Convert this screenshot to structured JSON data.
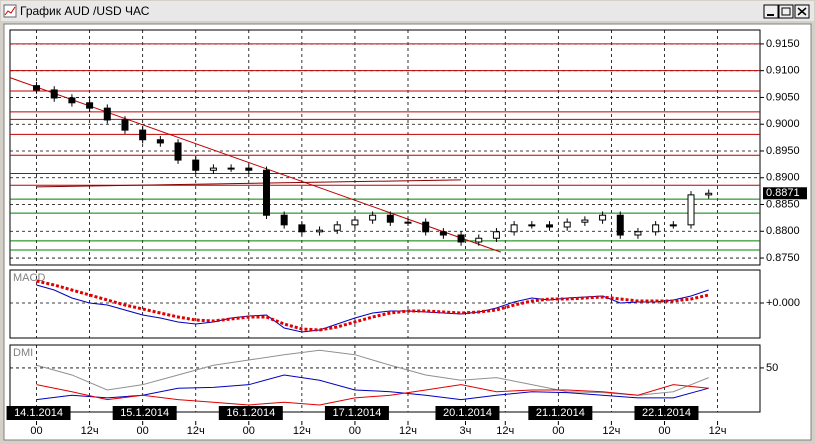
{
  "window": {
    "title": "График AUD /USD  ЧАС"
  },
  "chart_data": [
    {
      "type": "candlestick",
      "xlim": [
        -6,
        163.6
      ],
      "ylim": [
        0.8737,
        0.9176
      ],
      "yticks": [
        {
          "value": 0.915,
          "label": "0.9150"
        },
        {
          "value": 0.91,
          "label": "0.9100"
        },
        {
          "value": 0.905,
          "label": "0.9050"
        },
        {
          "value": 0.9,
          "label": "0.9000"
        },
        {
          "value": 0.895,
          "label": "0.8950"
        },
        {
          "value": 0.89,
          "label": "0.8900"
        },
        {
          "value": 0.885,
          "label": "0.8850"
        },
        {
          "value": 0.88,
          "label": "0.8800"
        },
        {
          "value": 0.875,
          "label": "0.8750"
        }
      ],
      "last_price": 0.8871,
      "x": [
        0,
        4,
        8,
        12,
        16,
        20,
        24,
        28,
        32,
        36,
        40,
        44,
        48,
        52,
        56,
        60,
        64,
        68,
        72,
        76,
        80,
        84,
        88,
        92,
        96,
        100,
        104,
        108,
        112,
        116,
        120,
        124,
        128,
        132,
        136,
        140,
        144,
        148,
        152
      ],
      "open": [
        0.9072,
        0.9064,
        0.9049,
        0.904,
        0.903,
        0.9008,
        0.8989,
        0.8971,
        0.8965,
        0.8933,
        0.8914,
        0.8918,
        0.8918,
        0.8914,
        0.883,
        0.8812,
        0.8799,
        0.8802,
        0.8812,
        0.8821,
        0.883,
        0.8817,
        0.8817,
        0.8799,
        0.8793,
        0.878,
        0.8787,
        0.8799,
        0.8812,
        0.8812,
        0.8808,
        0.8817,
        0.8821,
        0.883,
        0.8793,
        0.8799,
        0.8812,
        0.8812,
        0.8868
      ],
      "high": [
        0.9079,
        0.9071,
        0.9056,
        0.9047,
        0.9037,
        0.9015,
        0.8996,
        0.8978,
        0.8972,
        0.894,
        0.8925,
        0.8925,
        0.8925,
        0.8921,
        0.8837,
        0.8819,
        0.8809,
        0.8819,
        0.8828,
        0.8837,
        0.8837,
        0.8824,
        0.8824,
        0.8806,
        0.88,
        0.8794,
        0.8806,
        0.8819,
        0.8819,
        0.8819,
        0.8824,
        0.8828,
        0.8837,
        0.8837,
        0.8806,
        0.8819,
        0.8819,
        0.8875,
        0.8878
      ],
      "low": [
        0.9057,
        0.9042,
        0.9033,
        0.9023,
        0.9001,
        0.8982,
        0.8964,
        0.8958,
        0.8926,
        0.8907,
        0.8907,
        0.8911,
        0.8907,
        0.8823,
        0.8805,
        0.8792,
        0.8792,
        0.8795,
        0.8805,
        0.8814,
        0.881,
        0.881,
        0.8792,
        0.8786,
        0.8773,
        0.8773,
        0.878,
        0.8792,
        0.8805,
        0.8801,
        0.8801,
        0.881,
        0.8814,
        0.8786,
        0.8786,
        0.8792,
        0.8805,
        0.8805,
        0.8861
      ],
      "close": [
        0.9064,
        0.9049,
        0.904,
        0.903,
        0.9008,
        0.8989,
        0.8971,
        0.8965,
        0.8933,
        0.8914,
        0.8918,
        0.8918,
        0.8914,
        0.883,
        0.8812,
        0.8799,
        0.8802,
        0.8812,
        0.8821,
        0.883,
        0.8817,
        0.8817,
        0.8799,
        0.8793,
        0.878,
        0.8787,
        0.8799,
        0.8812,
        0.8812,
        0.8808,
        0.8817,
        0.8821,
        0.883,
        0.8793,
        0.8799,
        0.8812,
        0.8812,
        0.8868,
        0.8871
      ],
      "levels": [
        {
          "value": 0.915,
          "color": "#c00000"
        },
        {
          "value": 0.91,
          "color": "#c00000"
        },
        {
          "value": 0.9062,
          "color": "#c00000"
        },
        {
          "value": 0.9023,
          "color": "#c00000"
        },
        {
          "value": 0.9009,
          "color": "#c00000"
        },
        {
          "value": 0.8981,
          "color": "#c00000"
        },
        {
          "value": 0.8942,
          "color": "#c00000"
        },
        {
          "value": 0.8908,
          "color": "#c00000"
        },
        {
          "value": 0.8886,
          "color": "#c00000"
        },
        {
          "value": 0.886,
          "color": "#008000"
        },
        {
          "value": 0.8834,
          "color": "#008000"
        },
        {
          "value": 0.8782,
          "color": "#008000"
        },
        {
          "value": 0.8765,
          "color": "#008000"
        }
      ],
      "lines": [
        {
          "color": "#c00000",
          "x": [
            -6,
            105
          ],
          "y": [
            0.9087,
            0.8761
          ]
        },
        {
          "color": "#8b0000",
          "x": [
            0,
            96
          ],
          "y": [
            0.8883,
            0.8896
          ]
        }
      ]
    },
    {
      "type": "line",
      "title": "MACD",
      "xlim": [
        -6,
        163.6
      ],
      "ylim": [
        -0.0035,
        0.0033
      ],
      "yticks": [
        {
          "value": 0,
          "label": "+0.000"
        }
      ],
      "x": [
        0,
        4,
        8,
        12,
        16,
        20,
        24,
        28,
        32,
        36,
        40,
        44,
        48,
        52,
        56,
        60,
        64,
        68,
        72,
        76,
        80,
        84,
        88,
        92,
        96,
        100,
        104,
        108,
        112,
        116,
        120,
        124,
        128,
        132,
        136,
        140,
        144,
        148,
        152
      ],
      "series": [
        {
          "color": "#0000c0",
          "dash": false,
          "values": [
            0.0018,
            0.0013,
            0.0005,
            0,
            -0.0002,
            -0.0007,
            -0.0012,
            -0.0015,
            -0.0019,
            -0.0021,
            -0.0019,
            -0.0015,
            -0.0013,
            -0.0012,
            -0.0025,
            -0.0029,
            -0.0027,
            -0.0021,
            -0.0015,
            -0.001,
            -0.0008,
            -0.0008,
            -0.0009,
            -0.001,
            -0.0011,
            -0.0009,
            -0.0005,
            0.0001,
            0.0005,
            0.0003,
            0.0005,
            0.0006,
            0.0007,
            0,
            0.0001,
            0.0001,
            0.0003,
            0.0007,
            0.0013
          ]
        },
        {
          "color": "#e00000",
          "dash": true,
          "values": [
            0.0022,
            0.0018,
            0.0013,
            0.0008,
            0.0003,
            -0.0002,
            -0.0006,
            -0.001,
            -0.0014,
            -0.0017,
            -0.0018,
            -0.0016,
            -0.0014,
            -0.0014,
            -0.0021,
            -0.0026,
            -0.0027,
            -0.0024,
            -0.0019,
            -0.0014,
            -0.001,
            -0.0008,
            -0.0008,
            -0.0009,
            -0.001,
            -0.0009,
            -0.0007,
            -0.0002,
            0.0002,
            0.0004,
            0.0004,
            0.0005,
            0.0006,
            0.0004,
            0.0002,
            0.0002,
            0.0002,
            0.0004,
            0.0008
          ]
        }
      ]
    },
    {
      "type": "line",
      "title": "DMI",
      "xlim": [
        -6,
        163.6
      ],
      "ylim": [
        0,
        76
      ],
      "yticks": [
        50
      ],
      "x": [
        0,
        8,
        16,
        24,
        32,
        40,
        48,
        56,
        64,
        72,
        80,
        88,
        96,
        104,
        112,
        120,
        128,
        136,
        144,
        152
      ],
      "series": [
        {
          "color": "#909090",
          "dash": false,
          "values": [
            53,
            42,
            25,
            31,
            42,
            53,
            59,
            65,
            70,
            65,
            53,
            42,
            36,
            39,
            31,
            23,
            22,
            19,
            23,
            39
          ]
        },
        {
          "color": "#0000c0",
          "dash": false,
          "values": [
            14,
            19,
            16,
            19,
            27,
            28,
            31,
            42,
            36,
            25,
            23,
            19,
            14,
            19,
            23,
            22,
            19,
            16,
            16,
            27
          ]
        },
        {
          "color": "#e00000",
          "dash": false,
          "values": [
            31,
            23,
            14,
            19,
            14,
            11,
            8,
            11,
            8,
            16,
            19,
            25,
            31,
            23,
            25,
            25,
            23,
            19,
            31,
            27
          ]
        }
      ],
      "xticks": [
        {
          "value": 0,
          "label": "00"
        },
        {
          "value": 12,
          "label": "12ч"
        },
        {
          "value": 24,
          "label": "00"
        },
        {
          "value": 36,
          "label": "12ч"
        },
        {
          "value": 48,
          "label": "00"
        },
        {
          "value": 60,
          "label": "12ч"
        },
        {
          "value": 72,
          "label": "00"
        },
        {
          "value": 84,
          "label": "12ч"
        },
        {
          "value": 97,
          "label": "3ч"
        },
        {
          "value": 106,
          "label": "12ч"
        },
        {
          "value": 118,
          "label": "00"
        },
        {
          "value": 130,
          "label": "12ч"
        },
        {
          "value": 142,
          "label": "00"
        },
        {
          "value": 154,
          "label": "12ч"
        }
      ],
      "date_ticks": [
        {
          "value": 0,
          "label": "14.1.2014"
        },
        {
          "value": 24,
          "label": "15.1.2014"
        },
        {
          "value": 48,
          "label": "16.1.2014"
        },
        {
          "value": 72,
          "label": "17.1.2014"
        },
        {
          "value": 97,
          "label": "20.1.2014"
        },
        {
          "value": 118,
          "label": "21.1.2014"
        },
        {
          "value": 142,
          "label": "22.1.2014"
        }
      ]
    }
  ]
}
